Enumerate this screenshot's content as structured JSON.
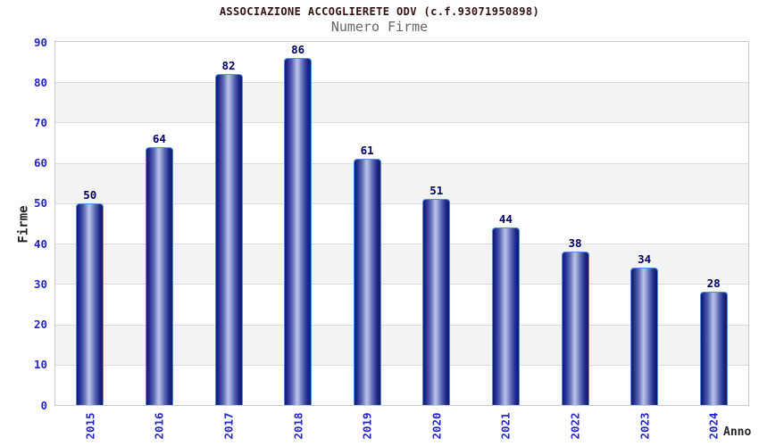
{
  "header": {
    "title": "ASSOCIAZIONE ACCOGLIERETE ODV (c.f.93071950898)",
    "subtitle": "Numero Firme"
  },
  "chart_data": {
    "type": "bar",
    "title": "ASSOCIAZIONE ACCOGLIERETE ODV (c.f.93071950898)",
    "subtitle": "Numero Firme",
    "categories": [
      "2015",
      "2016",
      "2017",
      "2018",
      "2019",
      "2020",
      "2021",
      "2022",
      "2023",
      "2024"
    ],
    "values": [
      50,
      64,
      82,
      86,
      61,
      51,
      44,
      38,
      34,
      28
    ],
    "xlabel": "Anno",
    "ylabel": "Firme",
    "ylim": [
      0,
      90
    ],
    "yticks": [
      0,
      10,
      20,
      30,
      40,
      50,
      60,
      70,
      80,
      90
    ],
    "grid": true,
    "legend": "none",
    "bar_value_labels": true,
    "background_bands": "alternating-gray"
  },
  "style": {
    "title_color": "#331010",
    "subtitle_color": "#666666",
    "tick_label_color": "#2424cc",
    "value_label_color": "#000066",
    "axis_title_color": "#222222",
    "plot_border_color": "#c9c9c9",
    "gridline_color": "#dcdcdc",
    "band_color": "#f3f3f3",
    "bar_border_color": "#4e8fe8",
    "bar_dark_color": "#131a66",
    "bar_mid_color": "#5a67b4",
    "bar_light_color": "#b6c0e8"
  }
}
